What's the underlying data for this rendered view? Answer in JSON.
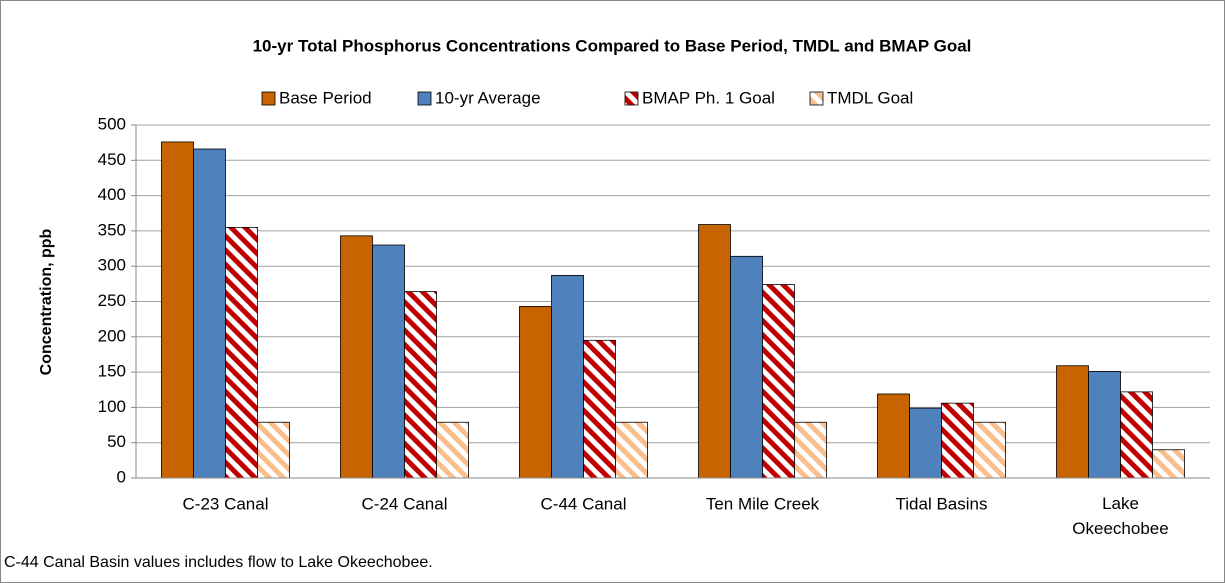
{
  "chart_data": {
    "type": "bar",
    "title": "10-yr Total Phosphorus Concentrations Compared to Base Period, TMDL and BMAP Goal",
    "y_label": "Concentration, ppb",
    "footnote": "C-44 Canal Basin values includes flow to Lake Okeechobee.",
    "categories": [
      "C-23 Canal",
      "C-24 Canal",
      "C-44 Canal",
      "Ten Mile Creek",
      "Tidal Basins",
      "Lake Okeechobee"
    ],
    "series": [
      {
        "name": "Base Period",
        "color": "#c86400",
        "hatch": false,
        "values": [
          476,
          343,
          243,
          359,
          119,
          159
        ]
      },
      {
        "name": "10-yr Average",
        "color": "#4f81bd",
        "hatch": false,
        "values": [
          466,
          330,
          287,
          314,
          99,
          151
        ]
      },
      {
        "name": "BMAP Ph. 1 Goal",
        "color": "#c00000",
        "hatch": true,
        "values": [
          355,
          264,
          195,
          274,
          106,
          122
        ]
      },
      {
        "name": "TMDL Goal",
        "color": "#f9be8c",
        "hatch": true,
        "values": [
          79,
          79,
          79,
          79,
          79,
          40
        ]
      }
    ],
    "ylim": [
      0,
      500
    ],
    "yticks": [
      0,
      50,
      100,
      150,
      200,
      250,
      300,
      350,
      400,
      450,
      500
    ],
    "grid": true,
    "legend": "top"
  }
}
